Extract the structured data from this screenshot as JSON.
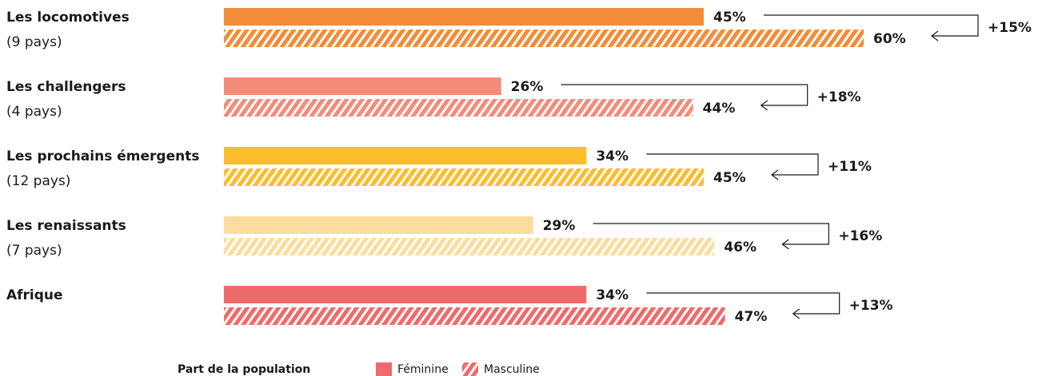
{
  "chart_data": {
    "type": "bar",
    "categories": [
      "Les locomotives",
      "Les challengers",
      "Les prochains émergents",
      "Les renaissants",
      "Afrique"
    ],
    "subtitles": [
      "(9 pays)",
      "(4 pays)",
      "(12 pays)",
      "(7 pays)",
      null
    ],
    "colors": [
      "#f28c38",
      "#f48b7b",
      "#fbbd2e",
      "#fcdc9e",
      "#ef6b6b"
    ],
    "series": [
      {
        "name": "Féminine",
        "style": "solid",
        "values": [
          45,
          26,
          34,
          29,
          34
        ],
        "value_labels": [
          "45%",
          "26%",
          "34%",
          "29%",
          "34%"
        ]
      },
      {
        "name": "Masculine",
        "style": "hatched",
        "values": [
          60,
          44,
          45,
          46,
          47
        ],
        "value_labels": [
          "60%",
          "44%",
          "45%",
          "46%",
          "47%"
        ]
      }
    ],
    "differences": [
      "+15%",
      "+18%",
      "+11%",
      "+16%",
      "+13%"
    ],
    "legend_title": "Part de la population",
    "legend_color": "#ef6b6b"
  }
}
